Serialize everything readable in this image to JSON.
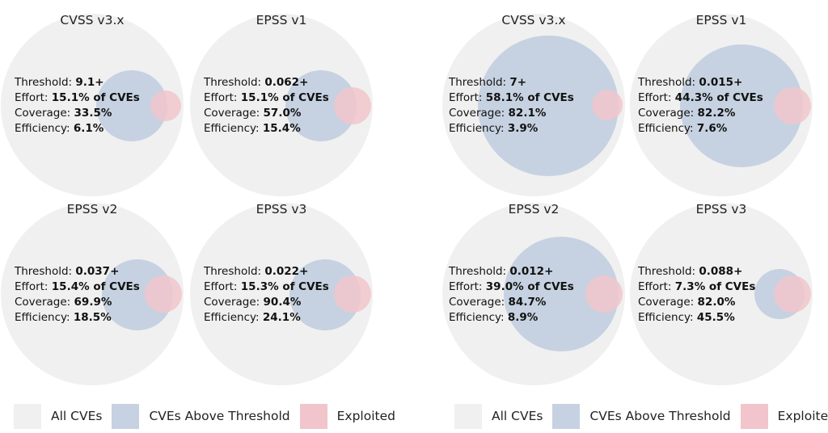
{
  "colors": {
    "all_cves": "#f0f0f0",
    "above_threshold": "#c6d2e1",
    "exploited": "#f1c5cb"
  },
  "labels": {
    "threshold": "Threshold: ",
    "effort": "Effort: ",
    "coverage": "Coverage: ",
    "efficiency": "Efficiency: "
  },
  "legend": {
    "all_cves": "All CVEs",
    "above_threshold": "CVEs Above Threshold",
    "exploited": "Exploited"
  },
  "panels": [
    {
      "diagrams": [
        {
          "title": "CVSS v3.x",
          "threshold": "9.1+",
          "effort": "15.1% of CVEs",
          "coverage": "33.5%",
          "efficiency": "6.1%",
          "effort_fraction": 0.151,
          "coverage_fraction": 0.335
        },
        {
          "title": "EPSS v1",
          "threshold": "0.062+",
          "effort": "15.1% of CVEs",
          "coverage": "57.0%",
          "efficiency": "15.4%",
          "effort_fraction": 0.151,
          "coverage_fraction": 0.57
        },
        {
          "title": "EPSS v2",
          "threshold": "0.037+",
          "effort": "15.4% of CVEs",
          "coverage": "69.9%",
          "efficiency": "18.5%",
          "effort_fraction": 0.154,
          "coverage_fraction": 0.699
        },
        {
          "title": "EPSS v3",
          "threshold": "0.022+",
          "effort": "15.3% of CVEs",
          "coverage": "90.4%",
          "efficiency": "24.1%",
          "effort_fraction": 0.153,
          "coverage_fraction": 0.904
        }
      ]
    },
    {
      "diagrams": [
        {
          "title": "CVSS v3.x",
          "threshold": "7+",
          "effort": "58.1% of CVEs",
          "coverage": "82.1%",
          "efficiency": "3.9%",
          "effort_fraction": 0.581,
          "coverage_fraction": 0.821
        },
        {
          "title": "EPSS v1",
          "threshold": "0.015+",
          "effort": "44.3% of CVEs",
          "coverage": "82.2%",
          "efficiency": "7.6%",
          "effort_fraction": 0.443,
          "coverage_fraction": 0.822
        },
        {
          "title": "EPSS v2",
          "threshold": "0.012+",
          "effort": "39.0% of CVEs",
          "coverage": "84.7%",
          "efficiency": "8.9%",
          "effort_fraction": 0.39,
          "coverage_fraction": 0.847
        },
        {
          "title": "EPSS v3",
          "threshold": "0.088+",
          "effort": "7.3% of CVEs",
          "coverage": "82.0%",
          "efficiency": "45.5%",
          "effort_fraction": 0.073,
          "coverage_fraction": 0.82
        }
      ]
    }
  ]
}
